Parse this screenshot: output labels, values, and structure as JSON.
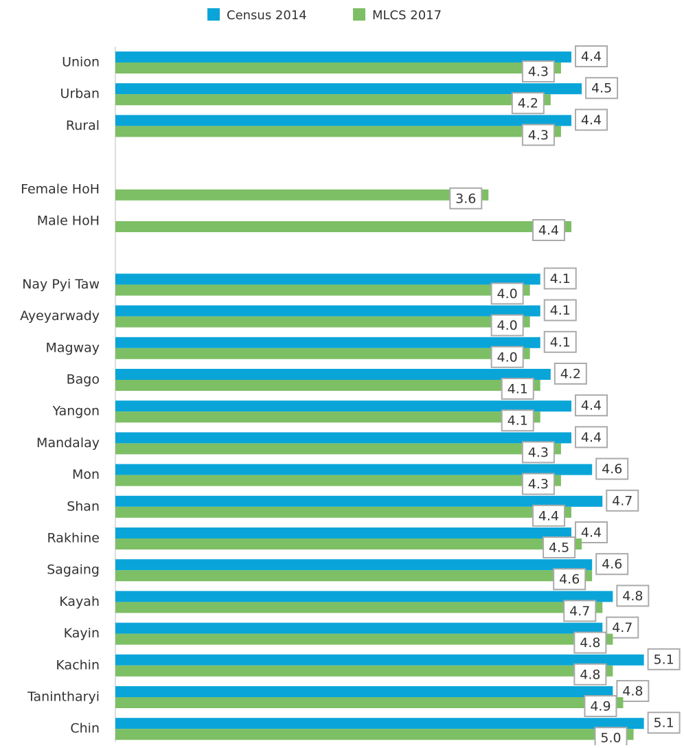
{
  "chart_data": {
    "type": "hbar",
    "categories": [
      "Union",
      "Urban",
      "Rural",
      null,
      "Female HoH",
      "Male HoH",
      null,
      "Nay Pyi Taw",
      "Ayeyarwady",
      "Magway",
      "Bago",
      "Yangon",
      "Mandalay",
      "Mon",
      "Shan",
      "Rakhine",
      "Sagaing",
      "Kayah",
      "Kayin",
      "Kachin",
      "Tanintharyi",
      "Chin"
    ],
    "series": [
      {
        "name": "Census 2014",
        "color": "#0aa5d8",
        "values": [
          4.4,
          4.5,
          4.4,
          null,
          null,
          null,
          null,
          4.1,
          4.1,
          4.1,
          4.2,
          4.4,
          4.4,
          4.6,
          4.7,
          4.4,
          4.6,
          4.8,
          4.7,
          5.1,
          4.8,
          5.1
        ],
        "value_labels": [
          "4.4",
          "4.5",
          "4.4",
          null,
          null,
          null,
          null,
          "4.1",
          "4.1",
          "4.1",
          "4.2",
          "4.4",
          "4.4",
          "4.6",
          "4.7",
          "4.4",
          "4.6",
          "4.8",
          "4.7",
          "5.1",
          "4.8",
          "5.1"
        ]
      },
      {
        "name": "MLCS 2017",
        "color": "#7dbf65",
        "values": [
          4.3,
          4.2,
          4.3,
          null,
          3.6,
          4.4,
          null,
          4.0,
          4.0,
          4.0,
          4.1,
          4.1,
          4.3,
          4.3,
          4.4,
          4.5,
          4.6,
          4.7,
          4.8,
          4.8,
          4.9,
          5.0
        ],
        "value_labels": [
          "4.3",
          "4.2",
          "4.3",
          null,
          "3.6",
          "4.4",
          null,
          "4.0",
          "4.0",
          "4.0",
          "4.1",
          "4.1",
          "4.3",
          "4.3",
          "4.4",
          "4.5",
          "4.6",
          "4.7",
          "4.8",
          "4.8",
          "4.9",
          "5.0"
        ]
      }
    ],
    "xlim": [
      0,
      5.5
    ],
    "legend": "top"
  }
}
